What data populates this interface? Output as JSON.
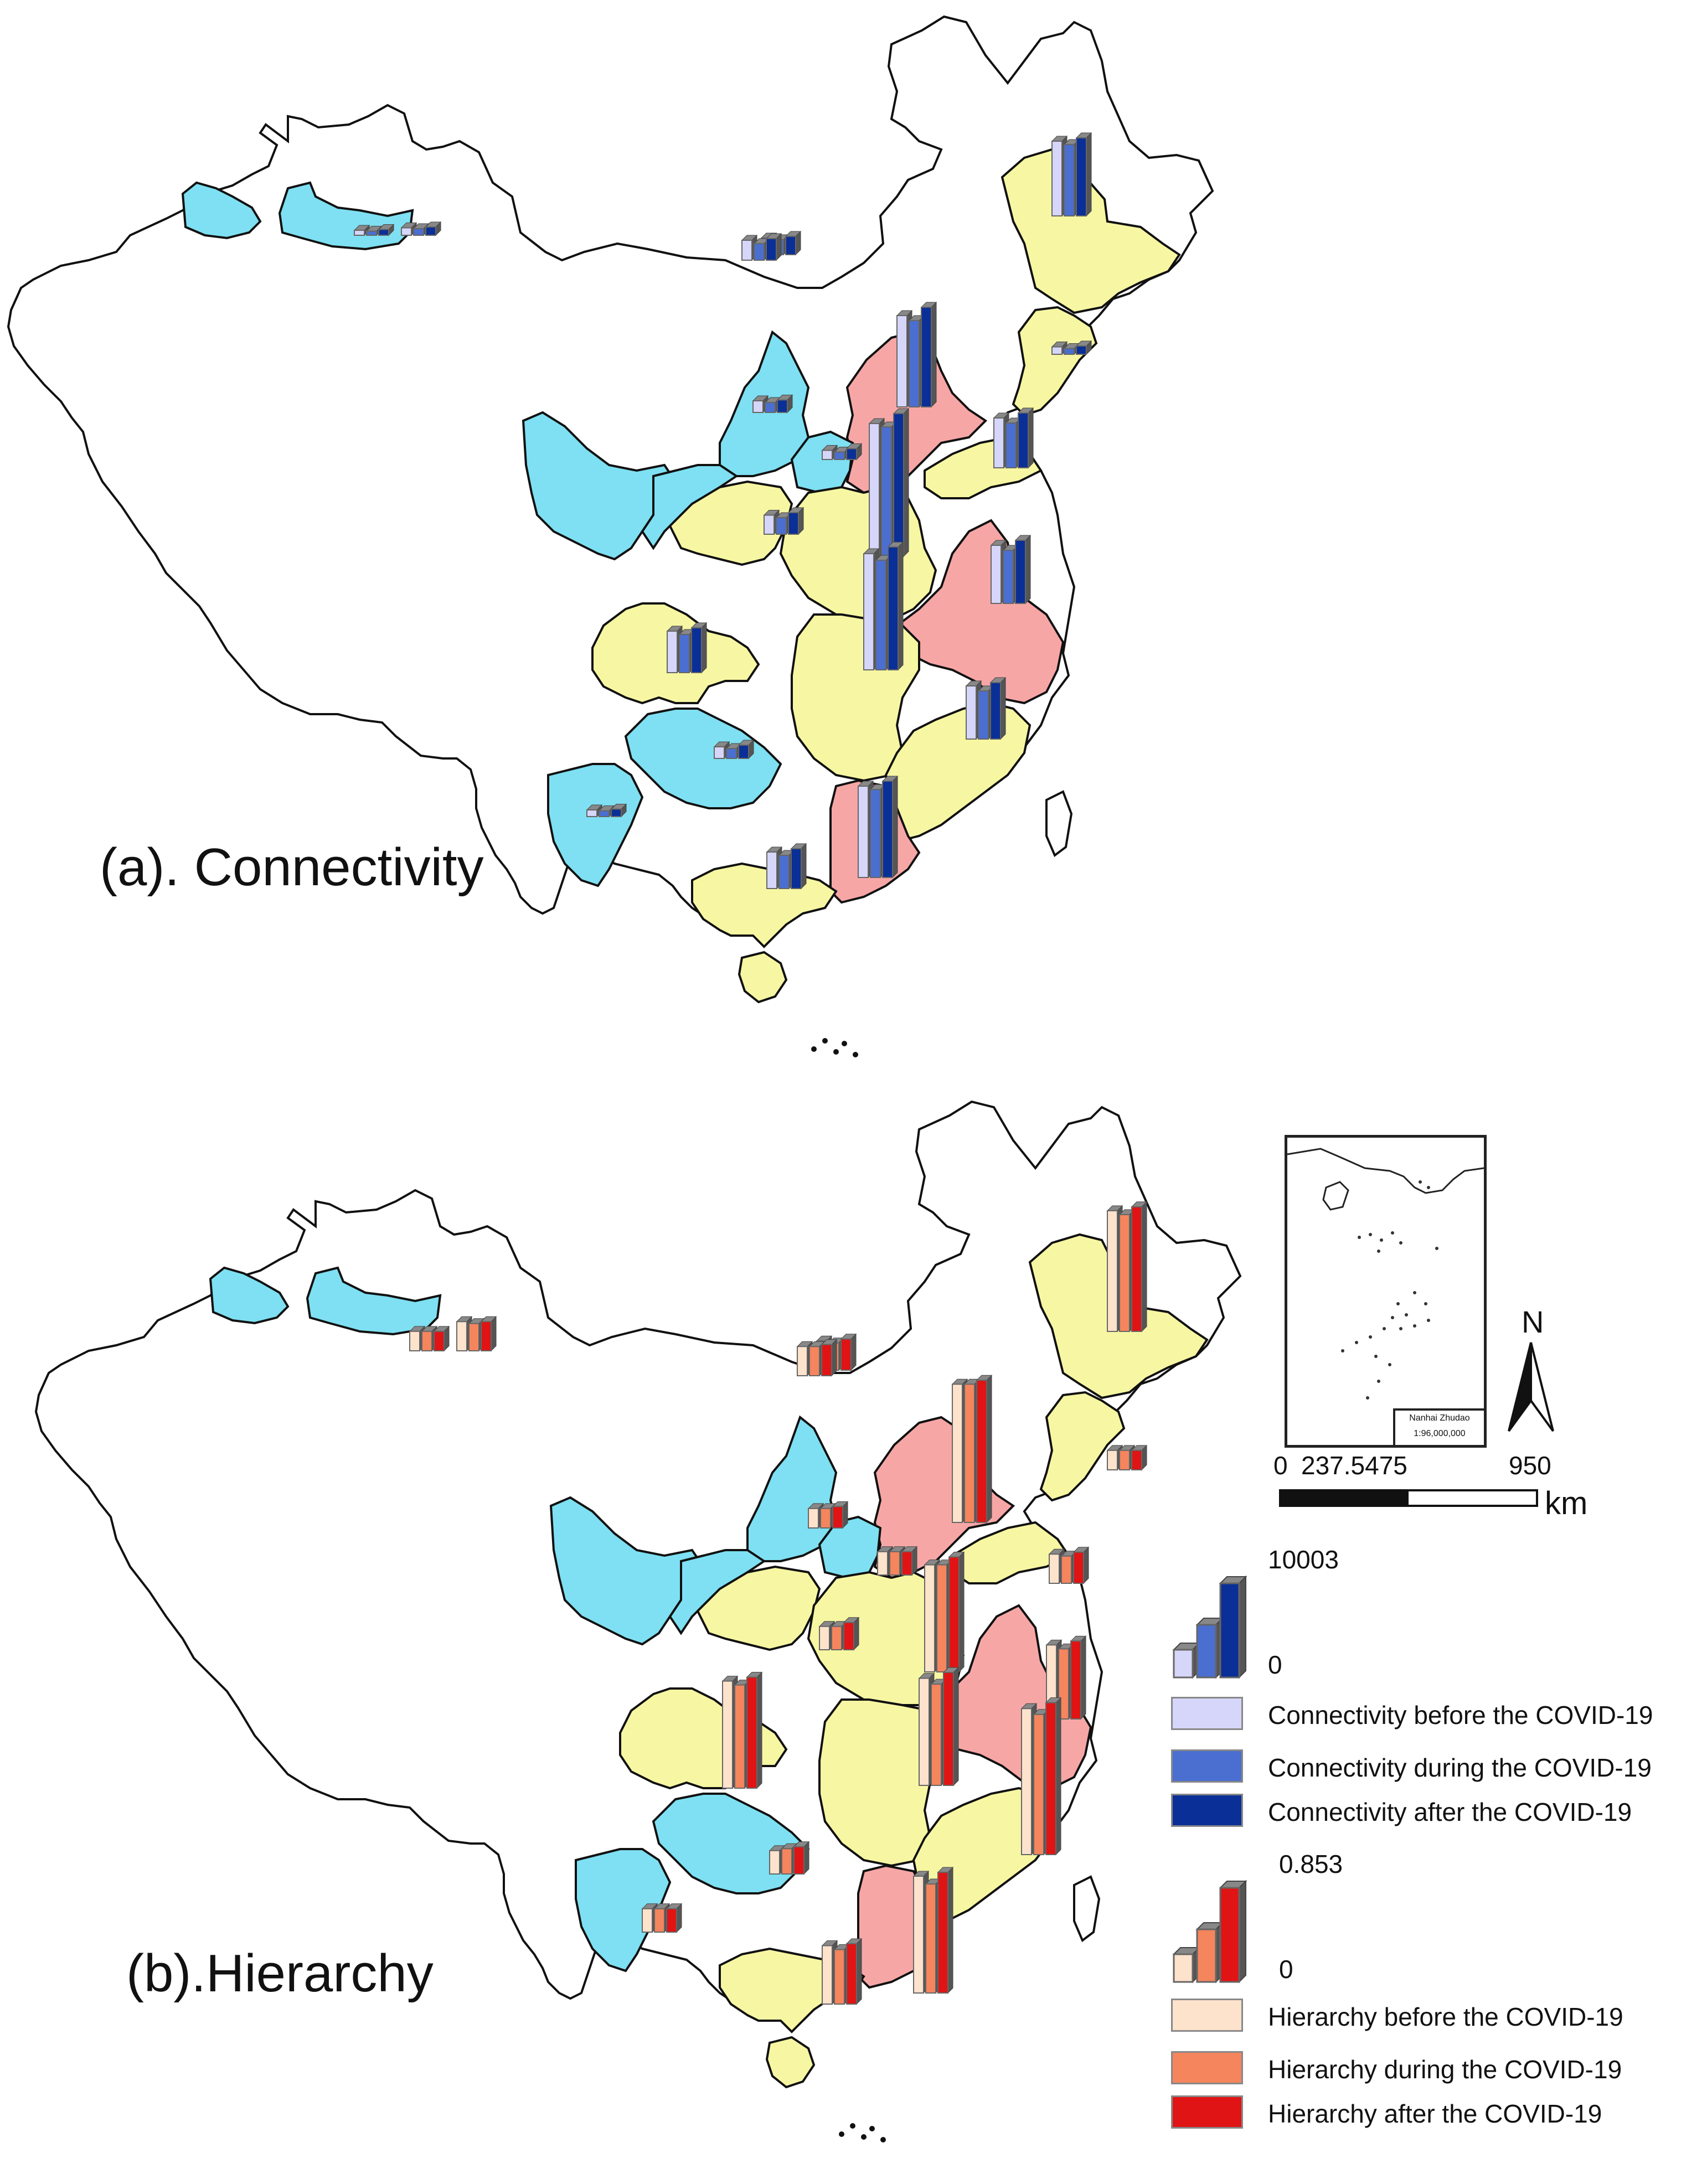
{
  "panels": {
    "a": {
      "title": "(a). Connectivity"
    },
    "b": {
      "title": "(b).Hierarchy"
    }
  },
  "colors": {
    "region_blue": "#7ee0f2",
    "region_yellow": "#f7f7a3",
    "region_pink": "#f7a6a6",
    "outline": "#111111",
    "conn_before": "#d6d6fa",
    "conn_during": "#4a6fd1",
    "conn_after": "#0a2f96",
    "hier_before": "#fde2cc",
    "hier_during": "#f5855d",
    "hier_after": "#e01414"
  },
  "inset": {
    "label": "Nanhai Zhudao",
    "scale": "1:96,000,000"
  },
  "north_arrow": {
    "label": "N"
  },
  "scale_bar": {
    "ticks": [
      "0",
      "237.5475",
      "950"
    ],
    "unit": "km"
  },
  "legend": {
    "connectivity": {
      "max": "10003",
      "min": "0",
      "items": [
        {
          "label": "Connectivity before the COVID-19",
          "color": "#d6d6fa"
        },
        {
          "label": "Connectivity during the COVID-19",
          "color": "#4a6fd1"
        },
        {
          "label": "Connectivity after the COVID-19",
          "color": "#0a2f96"
        }
      ]
    },
    "hierarchy": {
      "max": "0.853",
      "min": "0",
      "items": [
        {
          "label": "Hierarchy before the COVID-19",
          "color": "#fde2cc"
        },
        {
          "label": "Hierarchy during the COVID-19",
          "color": "#f5855d"
        },
        {
          "label": "Hierarchy after the COVID-19",
          "color": "#e01414"
        }
      ]
    }
  },
  "chart_data": [
    {
      "type": "bar",
      "series": [
        {
          "name": "Connectivity before the COVID-19",
          "values": [
            300,
            450,
            1000,
            450,
            700,
            550,
            1150,
            5500,
            3000,
            8000,
            3500,
            7000,
            2500,
            700,
            400,
            3200,
            2200,
            5500,
            1200,
            4500
          ]
        },
        {
          "name": "Connectivity during the COVID-19",
          "values": [
            250,
            400,
            900,
            350,
            600,
            450,
            1000,
            5200,
            2700,
            7800,
            3200,
            6600,
            2300,
            600,
            350,
            2900,
            2000,
            5300,
            1000,
            4300
          ]
        },
        {
          "name": "Connectivity after the COVID-19",
          "values": [
            350,
            500,
            1100,
            500,
            750,
            650,
            1300,
            6000,
            3300,
            8600,
            3800,
            7400,
            2700,
            800,
            450,
            3400,
            2400,
            5800,
            1300,
            4700
          ]
        }
      ],
      "ylim": [
        0,
        10003
      ]
    },
    {
      "type": "bar",
      "series": [
        {
          "name": "Hierarchy before the COVID-19",
          "values": [
            0.1,
            0.15,
            0.15,
            0.1,
            0.1,
            0.12,
            0.12,
            0.71,
            0.15,
            0.55,
            0.38,
            0.55,
            0.55,
            0.12,
            0.12,
            0.75,
            0.3,
            0.6,
            0.15,
            0.62
          ]
        },
        {
          "name": "Hierarchy during the COVID-19",
          "values": [
            0.1,
            0.14,
            0.14,
            0.1,
            0.1,
            0.12,
            0.12,
            0.71,
            0.14,
            0.55,
            0.36,
            0.52,
            0.53,
            0.13,
            0.12,
            0.72,
            0.28,
            0.56,
            0.15,
            0.6
          ]
        },
        {
          "name": "Hierarchy after the COVID-19",
          "values": [
            0.1,
            0.15,
            0.16,
            0.1,
            0.11,
            0.12,
            0.14,
            0.73,
            0.16,
            0.59,
            0.4,
            0.58,
            0.57,
            0.14,
            0.12,
            0.78,
            0.31,
            0.62,
            0.16,
            0.64
          ]
        }
      ],
      "ylim": [
        0,
        0.853
      ]
    }
  ]
}
